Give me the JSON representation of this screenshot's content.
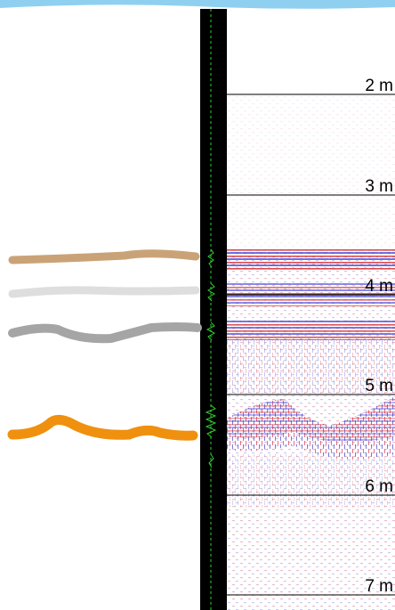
{
  "depth_labels": [
    "2 m",
    "3 m",
    "4 m",
    "5 m",
    "6 m",
    "7 m"
  ]
}
